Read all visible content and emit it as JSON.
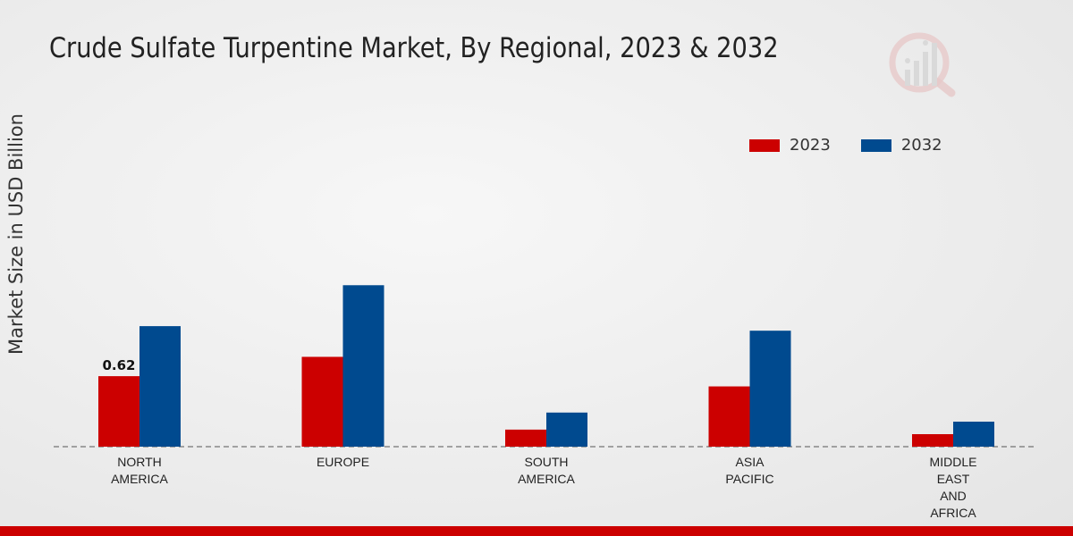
{
  "chart_data": {
    "type": "bar",
    "title": "Crude Sulfate Turpentine Market, By Regional, 2023 & 2032",
    "ylabel": "Market Size in USD Billion",
    "xlabel": "",
    "categories": [
      [
        "NORTH",
        "AMERICA"
      ],
      [
        "EUROPE"
      ],
      [
        "SOUTH",
        "AMERICA"
      ],
      [
        "ASIA",
        "PACIFIC"
      ],
      [
        "MIDDLE",
        "EAST",
        "AND",
        "AFRICA"
      ]
    ],
    "series": [
      {
        "name": "2023",
        "color": "#cc0000",
        "values": [
          0.62,
          0.79,
          0.15,
          0.53,
          0.11
        ]
      },
      {
        "name": "2032",
        "color": "#004a8f",
        "values": [
          1.06,
          1.42,
          0.3,
          1.02,
          0.22
        ]
      }
    ],
    "data_labels": [
      {
        "series": 0,
        "index": 0,
        "text": "0.62"
      }
    ],
    "ylim": [
      0,
      3.3
    ],
    "grid": false,
    "legend": "top-right"
  }
}
